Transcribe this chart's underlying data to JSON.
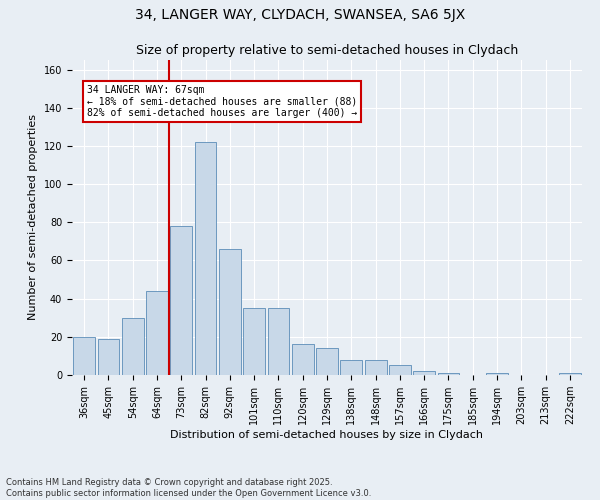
{
  "title": "34, LANGER WAY, CLYDACH, SWANSEA, SA6 5JX",
  "subtitle": "Size of property relative to semi-detached houses in Clydach",
  "xlabel": "Distribution of semi-detached houses by size in Clydach",
  "ylabel": "Number of semi-detached properties",
  "categories": [
    "36sqm",
    "45sqm",
    "54sqm",
    "64sqm",
    "73sqm",
    "82sqm",
    "92sqm",
    "101sqm",
    "110sqm",
    "120sqm",
    "129sqm",
    "138sqm",
    "148sqm",
    "157sqm",
    "166sqm",
    "175sqm",
    "185sqm",
    "194sqm",
    "203sqm",
    "213sqm",
    "222sqm"
  ],
  "values": [
    20,
    19,
    30,
    44,
    78,
    122,
    66,
    35,
    35,
    16,
    14,
    8,
    8,
    5,
    2,
    1,
    0,
    1,
    0,
    0,
    1
  ],
  "bar_color": "#c8d8e8",
  "bar_edge_color": "#5b8db8",
  "property_line_color": "#cc0000",
  "annotation_text": "34 LANGER WAY: 67sqm\n← 18% of semi-detached houses are smaller (88)\n82% of semi-detached houses are larger (400) →",
  "annotation_box_color": "#ffffff",
  "annotation_box_edge_color": "#cc0000",
  "ylim": [
    0,
    165
  ],
  "yticks": [
    0,
    20,
    40,
    60,
    80,
    100,
    120,
    140,
    160
  ],
  "background_color": "#e8eef4",
  "footnote": "Contains HM Land Registry data © Crown copyright and database right 2025.\nContains public sector information licensed under the Open Government Licence v3.0.",
  "title_fontsize": 10,
  "subtitle_fontsize": 9,
  "label_fontsize": 8,
  "tick_fontsize": 7,
  "annotation_fontsize": 7,
  "footnote_fontsize": 6
}
